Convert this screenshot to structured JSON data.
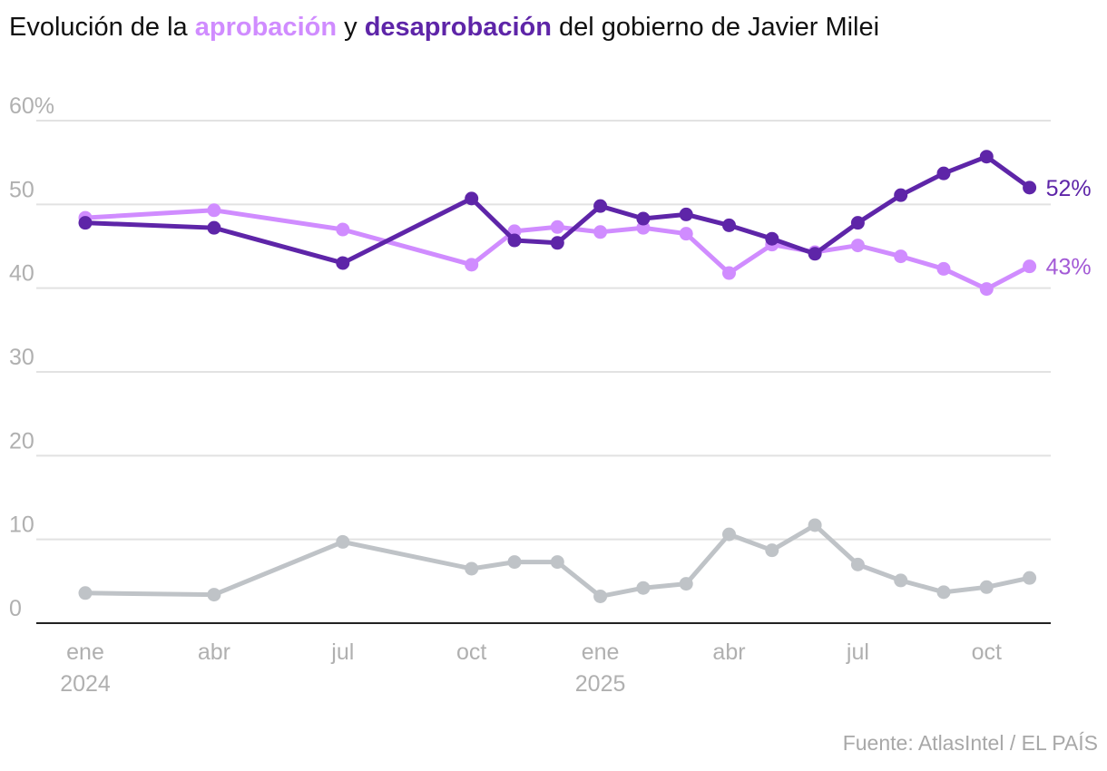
{
  "title": {
    "prefix": "Evolución de la ",
    "approval": "aprobación",
    "middle": " y ",
    "disapproval": "desaprobación",
    "suffix": " del gobierno de Javier Milei"
  },
  "source": "Fuente: AtlasIntel / EL PAÍS",
  "chart_data": {
    "type": "line",
    "title": "Evolución de la aprobación y desaprobación del gobierno de Javier Milei",
    "x": [
      "2024-01",
      "2024-04",
      "2024-07",
      "2024-10",
      "2024-11",
      "2024-12",
      "2025-01",
      "2025-02",
      "2025-03",
      "2025-04",
      "2025-05",
      "2025-06",
      "2025-07",
      "2025-08",
      "2025-09",
      "2025-10",
      "2025-11"
    ],
    "series": [
      {
        "name": "aprobación",
        "color": "#d08cff",
        "values": [
          48.4,
          49.3,
          47.0,
          42.8,
          46.8,
          47.3,
          46.7,
          47.2,
          46.5,
          41.8,
          45.2,
          44.3,
          45.1,
          43.8,
          42.3,
          39.9,
          42.6
        ],
        "end_label": "43%"
      },
      {
        "name": "desaprobación",
        "color": "#5e25a8",
        "values": [
          47.8,
          47.2,
          43.0,
          50.7,
          45.7,
          45.4,
          49.8,
          48.3,
          48.8,
          47.5,
          45.9,
          44.1,
          47.8,
          51.1,
          53.7,
          55.7,
          52.0
        ],
        "end_label": "52%"
      },
      {
        "color": "#bfc3c7",
        "values": [
          3.6,
          3.4,
          9.7,
          6.5,
          7.3,
          7.3,
          3.2,
          4.2,
          4.7,
          10.6,
          8.7,
          11.7,
          7.0,
          5.1,
          3.7,
          4.3,
          5.4
        ]
      }
    ],
    "ylim": [
      0,
      60
    ],
    "y_ticks": [
      {
        "v": 0,
        "label": "0"
      },
      {
        "v": 10,
        "label": "10"
      },
      {
        "v": 20,
        "label": "20"
      },
      {
        "v": 30,
        "label": "30"
      },
      {
        "v": 40,
        "label": "40"
      },
      {
        "v": 50,
        "label": "50"
      },
      {
        "v": 60,
        "label": "60%"
      }
    ],
    "x_ticks": [
      {
        "at": "2024-01",
        "label": "ene",
        "year": "2024"
      },
      {
        "at": "2024-04",
        "label": "abr"
      },
      {
        "at": "2024-07",
        "label": "jul"
      },
      {
        "at": "2024-10",
        "label": "oct"
      },
      {
        "at": "2025-01",
        "label": "ene",
        "year": "2025"
      },
      {
        "at": "2025-04",
        "label": "abr"
      },
      {
        "at": "2025-07",
        "label": "jul"
      },
      {
        "at": "2025-10",
        "label": "oct"
      }
    ],
    "grid": true
  }
}
